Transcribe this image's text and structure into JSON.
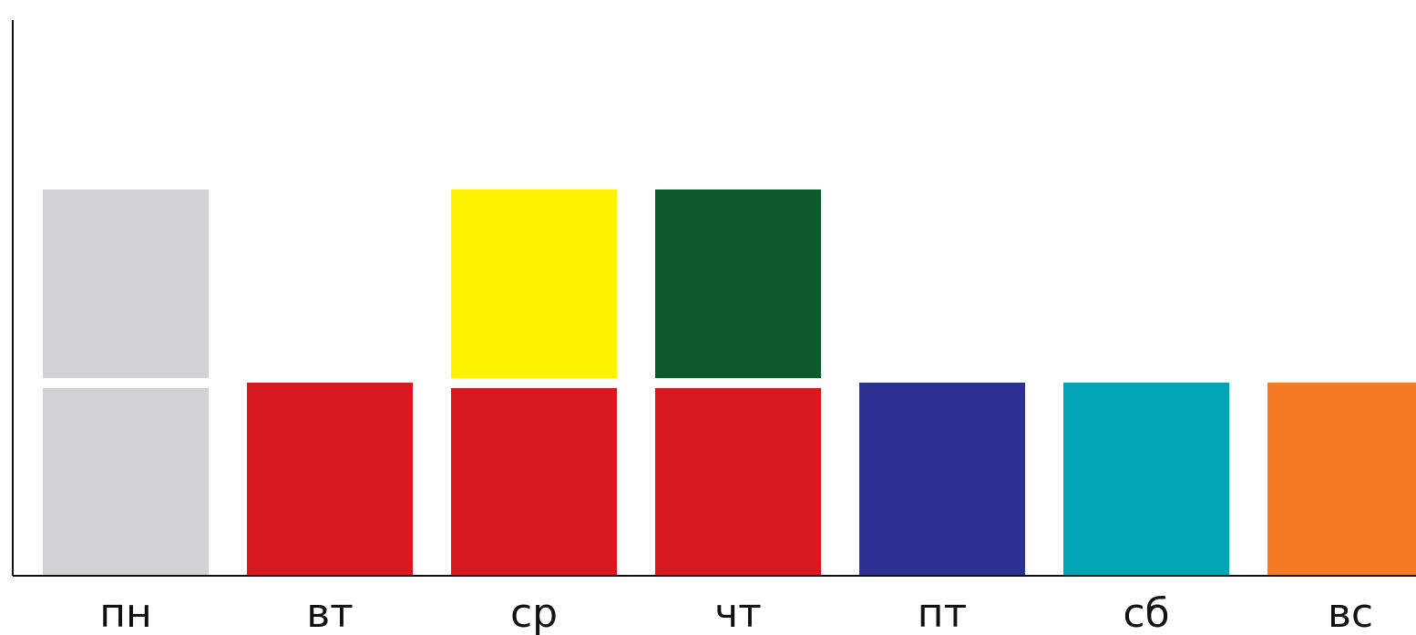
{
  "chart_data": {
    "type": "bar",
    "stacked": true,
    "title": "",
    "xlabel": "",
    "ylabel": "",
    "grid": false,
    "legend": "none",
    "categories": [
      "пн",
      "вт",
      "ср",
      "чт",
      "пт",
      "сб",
      "вс"
    ],
    "ylim": [
      0,
      3
    ],
    "stacks": [
      {
        "category": "пн",
        "segments": [
          {
            "value": 1,
            "color": "#d1d2d4"
          },
          {
            "value": 1,
            "color": "#d1d2d4"
          }
        ]
      },
      {
        "category": "вт",
        "segments": [
          {
            "value": 1,
            "color": "#d71920"
          }
        ]
      },
      {
        "category": "ср",
        "segments": [
          {
            "value": 1,
            "color": "#d71920"
          },
          {
            "value": 1,
            "color": "#fff200"
          }
        ]
      },
      {
        "category": "чт",
        "segments": [
          {
            "value": 1,
            "color": "#d71920"
          },
          {
            "value": 1,
            "color": "#0c592b"
          }
        ]
      },
      {
        "category": "пт",
        "segments": [
          {
            "value": 1,
            "color": "#2e3192"
          }
        ]
      },
      {
        "category": "сб",
        "segments": [
          {
            "value": 1,
            "color": "#00a5b5"
          }
        ]
      },
      {
        "category": "вс",
        "segments": [
          {
            "value": 1,
            "color": "#f47a25"
          }
        ]
      }
    ]
  }
}
